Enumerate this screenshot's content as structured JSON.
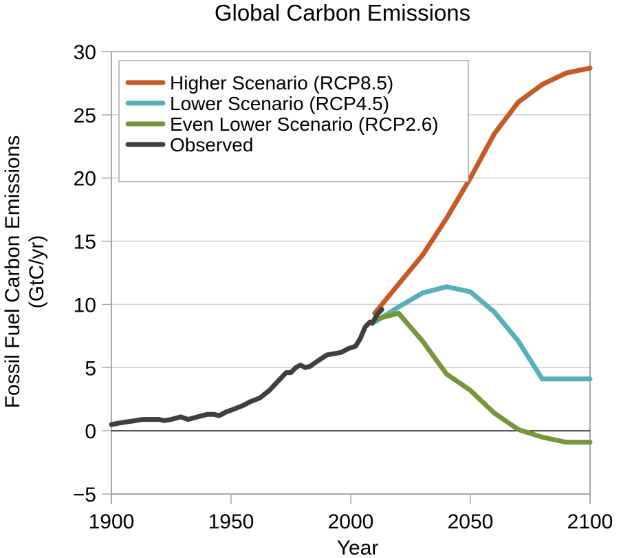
{
  "chart_data": {
    "type": "line",
    "title": "Global Carbon Emissions",
    "xlabel": "Year",
    "ylabel": [
      "Fossil Fuel Carbon Emissions",
      "(GtC/yr)"
    ],
    "xlim": [
      1900,
      2100
    ],
    "ylim": [
      -5,
      30
    ],
    "xticks": [
      1900,
      1950,
      2000,
      2050,
      2100
    ],
    "xtick_labels": [
      "1900",
      "1950",
      "2000",
      "2050",
      "2100"
    ],
    "yticks": [
      -5,
      0,
      5,
      10,
      15,
      20,
      25,
      30
    ],
    "ytick_labels": [
      "−5",
      "0",
      "5",
      "10",
      "15",
      "20",
      "25",
      "30"
    ],
    "grid": "horizontal",
    "zero_line": true,
    "legend_position": "top-left",
    "series": [
      {
        "name": "Higher Scenario (RCP8.5)",
        "color": "#c55a28",
        "x": [
          2010,
          2020,
          2030,
          2040,
          2050,
          2060,
          2070,
          2080,
          2090,
          2100
        ],
        "y": [
          9.3,
          11.6,
          13.9,
          16.8,
          20.0,
          23.5,
          26.0,
          27.4,
          28.3,
          28.7
        ]
      },
      {
        "name": "Lower Scenario (RCP4.5)",
        "color": "#5aafb6",
        "x": [
          2010,
          2020,
          2030,
          2040,
          2050,
          2060,
          2070,
          2080,
          2090,
          2100
        ],
        "y": [
          8.6,
          9.8,
          10.9,
          11.4,
          11.0,
          9.4,
          7.1,
          4.1,
          4.1,
          4.1
        ]
      },
      {
        "name": "Even Lower Scenario (RCP2.6)",
        "color": "#76963c",
        "x": [
          2010,
          2020,
          2030,
          2040,
          2050,
          2060,
          2070,
          2080,
          2090,
          2100
        ],
        "y": [
          8.8,
          9.3,
          7.1,
          4.5,
          3.2,
          1.4,
          0.1,
          -0.5,
          -0.9,
          -0.9
        ]
      },
      {
        "name": "Observed",
        "color": "#3f3f3f",
        "x": [
          1900,
          1903,
          1906,
          1910,
          1913,
          1916,
          1920,
          1922,
          1925,
          1929,
          1932,
          1936,
          1940,
          1943,
          1945,
          1948,
          1951,
          1955,
          1958,
          1962,
          1966,
          1970,
          1973,
          1975,
          1977,
          1979,
          1981,
          1983,
          1986,
          1990,
          1993,
          1996,
          1999,
          2002,
          2004,
          2006,
          2008,
          2009,
          2011,
          2013
        ],
        "y": [
          0.5,
          0.6,
          0.7,
          0.8,
          0.9,
          0.9,
          0.9,
          0.8,
          0.9,
          1.1,
          0.9,
          1.1,
          1.3,
          1.3,
          1.2,
          1.5,
          1.7,
          2.0,
          2.3,
          2.6,
          3.2,
          4.0,
          4.6,
          4.6,
          5.0,
          5.2,
          5.0,
          5.1,
          5.5,
          6.0,
          6.1,
          6.2,
          6.5,
          6.7,
          7.3,
          8.2,
          8.6,
          8.5,
          9.2,
          9.6
        ]
      }
    ]
  }
}
